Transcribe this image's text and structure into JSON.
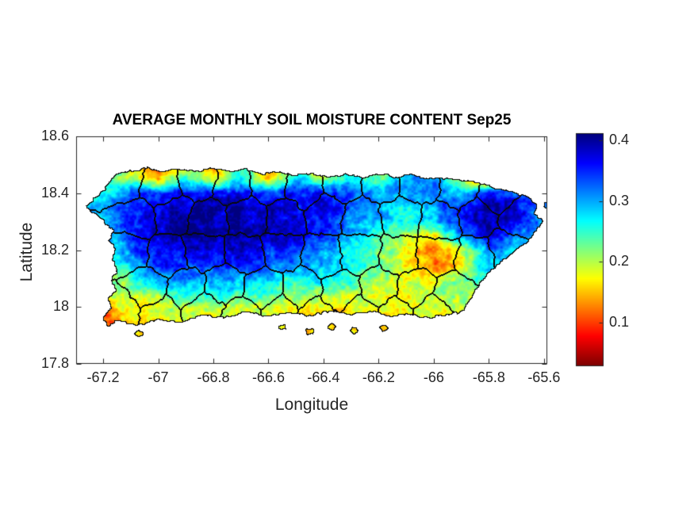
{
  "chart_data": {
    "type": "heatmap",
    "title": "AVERAGE MONTHLY SOIL MOISTURE CONTENT Sep25",
    "xlabel": "Longitude",
    "ylabel": "Latitude",
    "xlim": [
      -67.298,
      -65.588
    ],
    "ylim": [
      17.8,
      18.6
    ],
    "x_ticks": [
      -67.2,
      -67.0,
      -66.8,
      -66.6,
      -66.4,
      -66.2,
      -66.0,
      -65.8,
      -65.6
    ],
    "x_tick_labels": [
      "-67.2",
      "-67",
      "-66.8",
      "-66.6",
      "-66.4",
      "-66.2",
      "-66",
      "-65.8",
      "-65.6"
    ],
    "y_ticks": [
      18.6,
      18.4,
      18.2,
      18.0,
      17.8
    ],
    "y_tick_labels": [
      "18.6",
      "18.4",
      "18.2",
      "18",
      "17.8"
    ],
    "grid_lines": false,
    "legend_position": "none",
    "colorbar": {
      "min": 0.03,
      "max": 0.41,
      "ticks": [
        0.1,
        0.2,
        0.3,
        0.4
      ],
      "tick_labels": [
        "0.1",
        "0.2",
        "0.3",
        "0.4"
      ],
      "colormap": "jet-reversed-high-is-blue"
    },
    "axis_color": "#262626",
    "boundary_color": "#000000",
    "grid": {
      "lon_start": -67.3,
      "lon_step": 0.1,
      "lon_count": 18,
      "lat_start": 18.55,
      "lat_step": -0.05,
      "lat_count": 15,
      "values": [
        [
          0.25,
          0.25,
          0.25,
          0.25,
          0.25,
          0.25,
          0.25,
          0.25,
          0.25,
          0.25,
          0.25,
          0.25,
          0.25,
          0.25,
          0.25,
          0.25,
          0.25,
          0.25
        ],
        [
          0.22,
          0.22,
          0.18,
          0.08,
          0.2,
          0.1,
          0.25,
          0.09,
          0.22,
          0.12,
          0.25,
          0.15,
          0.28,
          0.3,
          0.1,
          0.06,
          0.3,
          0.3
        ],
        [
          0.24,
          0.25,
          0.2,
          0.14,
          0.26,
          0.18,
          0.28,
          0.16,
          0.28,
          0.22,
          0.28,
          0.24,
          0.3,
          0.32,
          0.18,
          0.08,
          0.3,
          0.3
        ],
        [
          0.2,
          0.25,
          0.32,
          0.34,
          0.37,
          0.36,
          0.37,
          0.35,
          0.36,
          0.35,
          0.33,
          0.31,
          0.3,
          0.32,
          0.28,
          0.34,
          0.33,
          0.3
        ],
        [
          0.24,
          0.3,
          0.35,
          0.37,
          0.39,
          0.4,
          0.39,
          0.38,
          0.38,
          0.36,
          0.34,
          0.3,
          0.28,
          0.3,
          0.35,
          0.4,
          0.37,
          0.3
        ],
        [
          0.26,
          0.28,
          0.36,
          0.38,
          0.4,
          0.4,
          0.4,
          0.39,
          0.38,
          0.36,
          0.32,
          0.28,
          0.26,
          0.28,
          0.37,
          0.4,
          0.36,
          0.31
        ],
        [
          0.24,
          0.26,
          0.35,
          0.38,
          0.4,
          0.4,
          0.39,
          0.38,
          0.37,
          0.34,
          0.3,
          0.26,
          0.2,
          0.16,
          0.33,
          0.38,
          0.32,
          0.3
        ],
        [
          0.22,
          0.25,
          0.33,
          0.36,
          0.38,
          0.38,
          0.38,
          0.36,
          0.34,
          0.31,
          0.27,
          0.24,
          0.17,
          0.13,
          0.18,
          0.32,
          0.28,
          0.28
        ],
        [
          0.2,
          0.22,
          0.3,
          0.34,
          0.36,
          0.36,
          0.35,
          0.33,
          0.31,
          0.3,
          0.27,
          0.22,
          0.16,
          0.12,
          0.16,
          0.3,
          0.26,
          0.26
        ],
        [
          0.18,
          0.2,
          0.26,
          0.3,
          0.32,
          0.32,
          0.3,
          0.28,
          0.27,
          0.26,
          0.24,
          0.21,
          0.18,
          0.16,
          0.22,
          0.26,
          0.24,
          0.24
        ],
        [
          0.14,
          0.18,
          0.21,
          0.24,
          0.26,
          0.26,
          0.25,
          0.24,
          0.23,
          0.22,
          0.21,
          0.2,
          0.18,
          0.19,
          0.22,
          0.22,
          0.22,
          0.22
        ],
        [
          0.08,
          0.14,
          0.18,
          0.18,
          0.2,
          0.2,
          0.2,
          0.19,
          0.18,
          0.18,
          0.18,
          0.18,
          0.17,
          0.18,
          0.2,
          0.2,
          0.2,
          0.2
        ],
        [
          0.05,
          0.11,
          0.16,
          0.16,
          0.18,
          0.18,
          0.18,
          0.17,
          0.17,
          0.16,
          0.16,
          0.16,
          0.16,
          0.17,
          0.18,
          0.18,
          0.18,
          0.18
        ],
        [
          0.12,
          0.14,
          0.15,
          0.15,
          0.16,
          0.16,
          0.16,
          0.16,
          0.16,
          0.16,
          0.16,
          0.16,
          0.16,
          0.16,
          0.17,
          0.17,
          0.17,
          0.17
        ],
        [
          0.15,
          0.15,
          0.15,
          0.15,
          0.15,
          0.15,
          0.15,
          0.15,
          0.15,
          0.15,
          0.15,
          0.15,
          0.15,
          0.15,
          0.15,
          0.15,
          0.15,
          0.15
        ]
      ]
    },
    "map": {
      "outline": [
        [
          -67.16,
          18.465
        ],
        [
          -67.1,
          18.48
        ],
        [
          -67.04,
          18.49
        ],
        [
          -66.98,
          18.478
        ],
        [
          -66.93,
          18.488
        ],
        [
          -66.87,
          18.48
        ],
        [
          -66.8,
          18.49
        ],
        [
          -66.74,
          18.478
        ],
        [
          -66.68,
          18.488
        ],
        [
          -66.62,
          18.47
        ],
        [
          -66.56,
          18.478
        ],
        [
          -66.5,
          18.462
        ],
        [
          -66.44,
          18.472
        ],
        [
          -66.38,
          18.458
        ],
        [
          -66.32,
          18.468
        ],
        [
          -66.26,
          18.458
        ],
        [
          -66.19,
          18.47
        ],
        [
          -66.13,
          18.458
        ],
        [
          -66.08,
          18.468
        ],
        [
          -66.02,
          18.45
        ],
        [
          -65.96,
          18.455
        ],
        [
          -65.9,
          18.448
        ],
        [
          -65.84,
          18.438
        ],
        [
          -65.78,
          18.42
        ],
        [
          -65.72,
          18.405
        ],
        [
          -65.66,
          18.39
        ],
        [
          -65.62,
          18.36
        ],
        [
          -65.635,
          18.33
        ],
        [
          -65.6,
          18.3
        ],
        [
          -65.625,
          18.27
        ],
        [
          -65.65,
          18.24
        ],
        [
          -65.7,
          18.2
        ],
        [
          -65.75,
          18.16
        ],
        [
          -65.8,
          18.12
        ],
        [
          -65.84,
          18.07
        ],
        [
          -65.87,
          18.02
        ],
        [
          -65.89,
          17.985
        ],
        [
          -65.95,
          17.97
        ],
        [
          -66.02,
          17.96
        ],
        [
          -66.09,
          17.975
        ],
        [
          -66.16,
          17.965
        ],
        [
          -66.23,
          17.985
        ],
        [
          -66.3,
          17.97
        ],
        [
          -66.38,
          17.985
        ],
        [
          -66.45,
          17.965
        ],
        [
          -66.52,
          17.98
        ],
        [
          -66.6,
          17.965
        ],
        [
          -66.68,
          17.98
        ],
        [
          -66.76,
          17.96
        ],
        [
          -66.84,
          17.97
        ],
        [
          -66.92,
          17.945
        ],
        [
          -67.0,
          17.955
        ],
        [
          -67.08,
          17.935
        ],
        [
          -67.15,
          17.95
        ],
        [
          -67.185,
          17.93
        ],
        [
          -67.2,
          17.965
        ],
        [
          -67.17,
          17.995
        ],
        [
          -67.185,
          18.03
        ],
        [
          -67.155,
          18.06
        ],
        [
          -67.175,
          18.095
        ],
        [
          -67.15,
          18.13
        ],
        [
          -67.17,
          18.165
        ],
        [
          -67.155,
          18.2
        ],
        [
          -67.18,
          18.23
        ],
        [
          -67.165,
          18.265
        ],
        [
          -67.2,
          18.3
        ],
        [
          -67.235,
          18.33
        ],
        [
          -67.265,
          18.355
        ],
        [
          -67.225,
          18.39
        ],
        [
          -67.19,
          18.42
        ]
      ],
      "islets": [
        [
          -67.07,
          17.905
        ],
        [
          -66.55,
          17.93
        ],
        [
          -66.45,
          17.915
        ],
        [
          -66.37,
          17.93
        ],
        [
          -66.29,
          17.915
        ],
        [
          -66.18,
          17.925
        ],
        [
          -65.585,
          18.355
        ],
        [
          -65.575,
          18.3
        ]
      ],
      "boundary_seeds": [
        [
          -67.13,
          18.44
        ],
        [
          -66.99,
          18.42
        ],
        [
          -66.86,
          18.45
        ],
        [
          -66.73,
          18.43
        ],
        [
          -66.6,
          18.44
        ],
        [
          -66.47,
          18.42
        ],
        [
          -66.33,
          18.44
        ],
        [
          -66.19,
          18.43
        ],
        [
          -66.05,
          18.44
        ],
        [
          -65.91,
          18.42
        ],
        [
          -65.77,
          18.4
        ],
        [
          -67.09,
          18.31
        ],
        [
          -66.95,
          18.33
        ],
        [
          -66.82,
          18.3
        ],
        [
          -66.68,
          18.32
        ],
        [
          -66.54,
          18.31
        ],
        [
          -66.4,
          18.33
        ],
        [
          -66.26,
          18.31
        ],
        [
          -66.12,
          18.32
        ],
        [
          -65.98,
          18.3
        ],
        [
          -65.84,
          18.32
        ],
        [
          -65.69,
          18.31
        ],
        [
          -67.11,
          18.2
        ],
        [
          -66.97,
          18.18
        ],
        [
          -66.83,
          18.21
        ],
        [
          -66.69,
          18.19
        ],
        [
          -66.55,
          18.2
        ],
        [
          -66.41,
          18.18
        ],
        [
          -66.27,
          18.2
        ],
        [
          -66.13,
          18.18
        ],
        [
          -65.99,
          18.19
        ],
        [
          -65.85,
          18.17
        ],
        [
          -65.73,
          18.2
        ],
        [
          -67.04,
          18.07
        ],
        [
          -66.9,
          18.06
        ],
        [
          -66.76,
          18.08
        ],
        [
          -66.62,
          18.06
        ],
        [
          -66.48,
          18.07
        ],
        [
          -66.34,
          18.05
        ],
        [
          -66.2,
          18.07
        ],
        [
          -66.06,
          18.06
        ],
        [
          -65.93,
          18.05
        ],
        [
          -67.14,
          17.99
        ],
        [
          -66.99,
          17.97
        ],
        [
          -66.84,
          17.99
        ],
        [
          -66.7,
          17.97
        ],
        [
          -66.56,
          17.98
        ],
        [
          -66.42,
          17.97
        ],
        [
          -66.28,
          17.98
        ],
        [
          -66.14,
          17.97
        ],
        [
          -66.0,
          17.99
        ]
      ]
    }
  }
}
